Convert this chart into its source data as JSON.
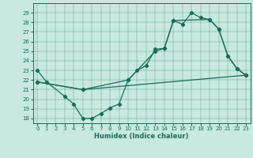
{
  "background_color": "#c8e8e0",
  "line_color": "#1a6b5a",
  "ylim": [
    17.5,
    30.0
  ],
  "xlim": [
    -0.5,
    23.5
  ],
  "yticks": [
    18,
    19,
    20,
    21,
    22,
    23,
    24,
    25,
    26,
    27,
    28,
    29
  ],
  "xticks": [
    0,
    1,
    2,
    3,
    4,
    5,
    6,
    7,
    8,
    9,
    10,
    11,
    12,
    13,
    14,
    15,
    16,
    17,
    18,
    19,
    20,
    21,
    22,
    23
  ],
  "xlabel": "Humidex (Indice chaleur)",
  "line1_x": [
    0,
    1,
    3,
    4,
    5,
    6,
    7,
    8,
    9,
    10,
    11,
    12,
    13,
    14,
    15,
    16,
    17,
    18,
    19,
    20,
    21,
    22,
    23
  ],
  "line1_y": [
    23,
    21.8,
    20.3,
    19.5,
    18.0,
    18.0,
    18.5,
    19.1,
    19.5,
    22.0,
    23.0,
    23.5,
    25.2,
    25.3,
    28.2,
    27.8,
    29.0,
    28.5,
    28.3,
    27.3,
    24.5,
    23.2,
    22.5
  ],
  "line2_x": [
    0,
    5,
    23
  ],
  "line2_y": [
    21.8,
    21.0,
    22.5
  ],
  "line3_x": [
    0,
    5,
    10,
    13,
    14,
    15,
    19,
    20,
    21,
    22,
    23
  ],
  "line3_y": [
    21.8,
    21.0,
    22.0,
    25.0,
    25.3,
    28.2,
    28.3,
    27.3,
    24.5,
    23.2,
    22.5
  ]
}
